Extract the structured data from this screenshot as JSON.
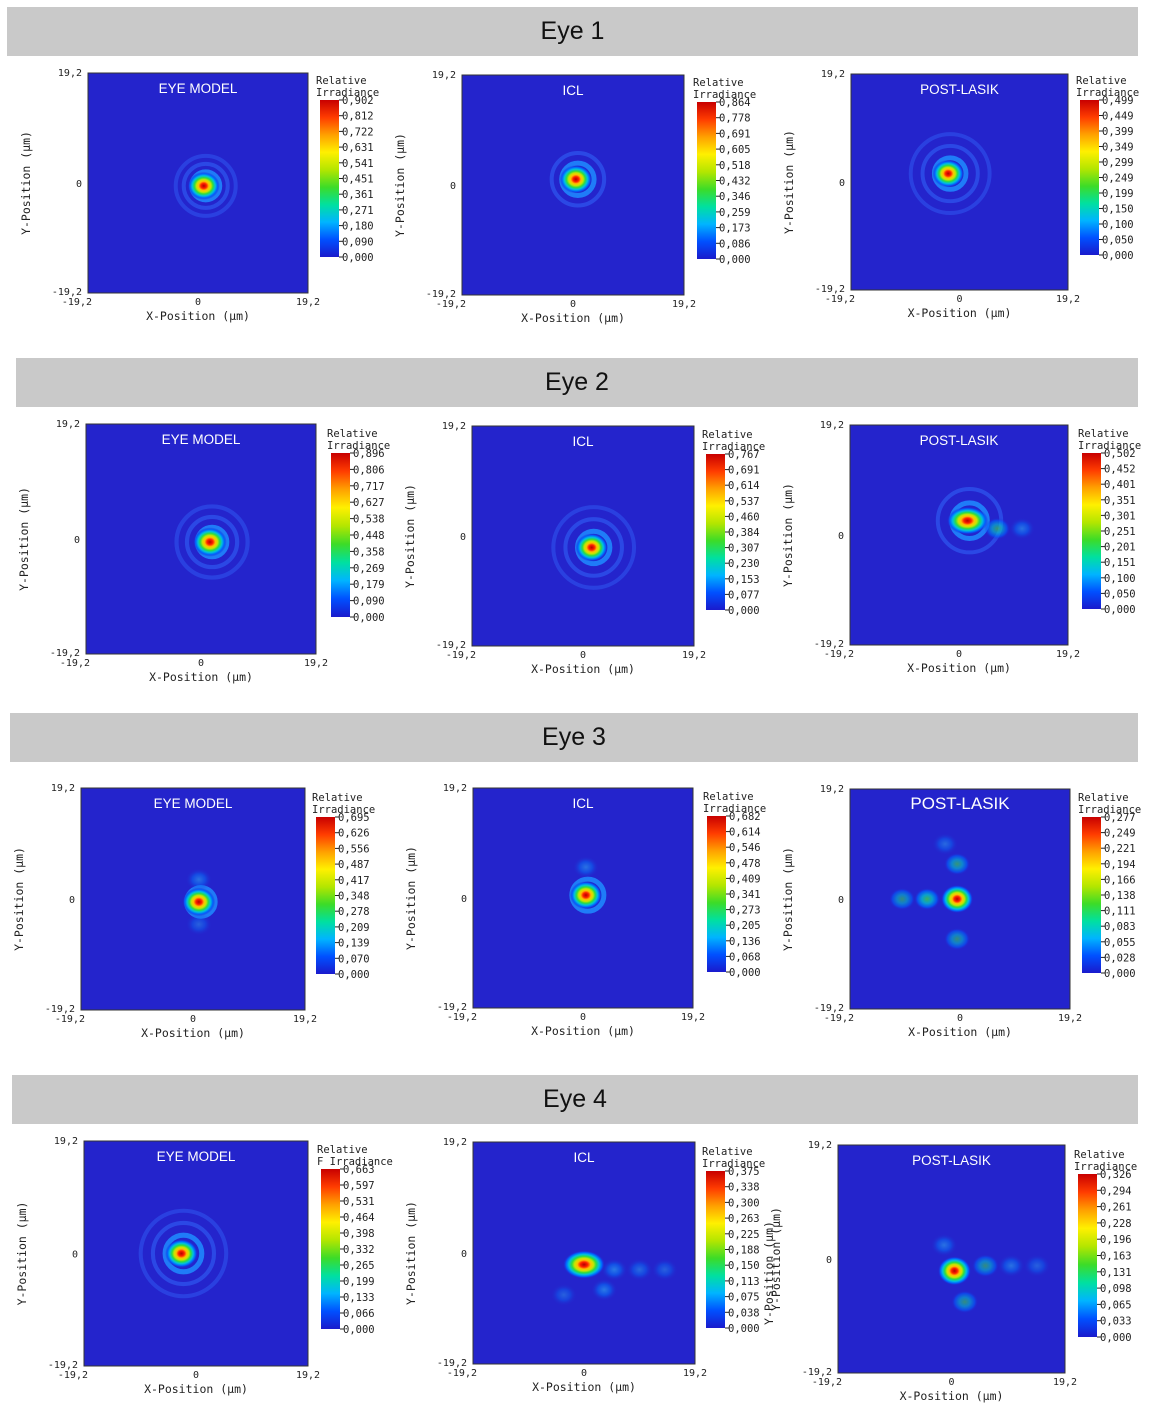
{
  "colorscale": [
    "#1a1acc",
    "#0050ff",
    "#00b4ff",
    "#00e0a0",
    "#3cdc28",
    "#b4e600",
    "#fff000",
    "#ffa000",
    "#ff3c00",
    "#c80000"
  ],
  "background_color": "#2424cc",
  "rows": [
    {
      "title": "Eye 1"
    },
    {
      "title": "Eye 2"
    },
    {
      "title": "Eye 3"
    },
    {
      "title": "Eye 4"
    }
  ],
  "chart_data": [
    {
      "type": "heatmap",
      "eye": "Eye 1",
      "label": "EYE MODEL",
      "xlabel": "X-Position (µm)",
      "ylabel": "Y-Position (µm)",
      "xlim": [
        -19.2,
        19.2
      ],
      "ylim": [
        -19.2,
        19.2
      ],
      "x_ticks": [
        "-19,2",
        "0",
        "19,2"
      ],
      "y_ticks": [
        "19,2",
        "0",
        "-19,2"
      ],
      "colorbar_title": [
        "Relative",
        "Irradiance"
      ],
      "colorbar_ticks": [
        "0,902",
        "0,812",
        "0,722",
        "0,631",
        "0,541",
        "0,451",
        "0,361",
        "0,271",
        "0,180",
        "0,090",
        "0,000"
      ],
      "peak_position": [
        1,
        -0.5
      ],
      "peak_value": 0.902
    },
    {
      "type": "heatmap",
      "eye": "Eye 1",
      "label": "ICL",
      "xlabel": "X-Position (µm)",
      "ylabel": "Y-Position (µm)",
      "xlim": [
        -19.2,
        19.2
      ],
      "ylim": [
        -19.2,
        19.2
      ],
      "x_ticks": [
        "-19,2",
        "0",
        "19,2"
      ],
      "y_ticks": [
        "19,2",
        "0",
        "-19,2"
      ],
      "colorbar_title": [
        "Relative",
        "Irradiance"
      ],
      "colorbar_ticks": [
        "0,864",
        "0,778",
        "0,691",
        "0,605",
        "0,518",
        "0,432",
        "0,346",
        "0,259",
        "0,173",
        "0,086",
        "0,000"
      ],
      "peak_position": [
        0.5,
        1
      ],
      "peak_value": 0.864
    },
    {
      "type": "heatmap",
      "eye": "Eye 1",
      "label": "POST-LASIK",
      "xlabel": "X-Position (µm)",
      "ylabel": "Y-Position (µm)",
      "xlim": [
        -19.2,
        19.2
      ],
      "ylim": [
        -19.2,
        19.2
      ],
      "x_ticks": [
        "-19,2",
        "0",
        "19,2"
      ],
      "y_ticks": [
        "19,2",
        "0",
        "-19,2"
      ],
      "colorbar_title": [
        "Relative",
        "Irradiance"
      ],
      "colorbar_ticks": [
        "0,499",
        "0,449",
        "0,399",
        "0,349",
        "0,299",
        "0,249",
        "0,199",
        "0,150",
        "0,100",
        "0,050",
        "0,000"
      ],
      "peak_position": [
        -2,
        1.5
      ],
      "peak_value": 0.499
    },
    {
      "type": "heatmap",
      "eye": "Eye 2",
      "label": "EYE MODEL",
      "xlabel": "X-Position (µm)",
      "ylabel": "Y-Position (µm)",
      "xlim": [
        -19.2,
        19.2
      ],
      "ylim": [
        -19.2,
        19.2
      ],
      "x_ticks": [
        "-19,2",
        "0",
        "19,2"
      ],
      "y_ticks": [
        "19,2",
        "0",
        "-19,2"
      ],
      "colorbar_title": [
        "Relative",
        "Irradiance"
      ],
      "colorbar_ticks": [
        "0,896",
        "0,806",
        "0,717",
        "0,627",
        "0,538",
        "0,448",
        "0,358",
        "0,269",
        "0,179",
        "0,090",
        "0,000"
      ],
      "peak_position": [
        1.5,
        -0.5
      ],
      "peak_value": 0.896
    },
    {
      "type": "heatmap",
      "eye": "Eye 2",
      "label": "ICL",
      "xlabel": "X-Position (µm)",
      "ylabel": "Y-Position (µm)",
      "xlim": [
        -19.2,
        19.2
      ],
      "ylim": [
        -19.2,
        19.2
      ],
      "x_ticks": [
        "-19,2",
        "0",
        "19,2"
      ],
      "y_ticks": [
        "19,2",
        "0",
        "-19,2"
      ],
      "colorbar_title": [
        "Relative",
        "Irradiance"
      ],
      "colorbar_ticks": [
        "0,767",
        "0,691",
        "0,614",
        "0,537",
        "0,460",
        "0,384",
        "0,307",
        "0,230",
        "0,153",
        "0,077",
        "0,000"
      ],
      "peak_position": [
        1.5,
        -2
      ],
      "peak_value": 0.767
    },
    {
      "type": "heatmap",
      "eye": "Eye 2",
      "label": "POST-LASIK",
      "xlabel": "X-Position (µm)",
      "ylabel": "Y-Position (µm)",
      "xlim": [
        -19.2,
        19.2
      ],
      "ylim": [
        -19.2,
        19.2
      ],
      "x_ticks": [
        "-19,2",
        "0",
        "19,2"
      ],
      "y_ticks": [
        "19,2",
        "0",
        "-19,2"
      ],
      "colorbar_title": [
        "Relative",
        "Irradiance"
      ],
      "colorbar_ticks": [
        "0,502",
        "0,452",
        "0,401",
        "0,351",
        "0,301",
        "0,251",
        "0,201",
        "0,151",
        "0,100",
        "0,050",
        "0,000"
      ],
      "peak_position": [
        1.5,
        2.5
      ],
      "peak_value": 0.502
    },
    {
      "type": "heatmap",
      "eye": "Eye 3",
      "label": "EYE MODEL",
      "xlabel": "X-Position (µm)",
      "ylabel": "Y-Position (µm)",
      "xlim": [
        -19.2,
        19.2
      ],
      "ylim": [
        -19.2,
        19.2
      ],
      "x_ticks": [
        "-19,2",
        "0",
        "19,2"
      ],
      "y_ticks": [
        "19,2",
        "0",
        "-19,2"
      ],
      "colorbar_title": [
        "Relative",
        "Irradiance"
      ],
      "colorbar_ticks": [
        "0,695",
        "0,626",
        "0,556",
        "0,487",
        "0,417",
        "0,348",
        "0,278",
        "0,209",
        "0,139",
        "0,070",
        "0,000"
      ],
      "peak_position": [
        1,
        -0.5
      ],
      "peak_value": 0.695
    },
    {
      "type": "heatmap",
      "eye": "Eye 3",
      "label": "ICL",
      "xlabel": "X-Position (µm)",
      "ylabel": "Y-Position (µm)",
      "xlim": [
        -19.2,
        19.2
      ],
      "ylim": [
        -19.2,
        19.2
      ],
      "x_ticks": [
        "-19,2",
        "0",
        "19,2"
      ],
      "y_ticks": [
        "19,2",
        "0",
        "-19,2"
      ],
      "colorbar_title": [
        "Relative",
        "Irradiance"
      ],
      "colorbar_ticks": [
        "0,682",
        "0,614",
        "0,546",
        "0,478",
        "0,409",
        "0,341",
        "0,273",
        "0,205",
        "0,136",
        "0,068",
        "0,000"
      ],
      "peak_position": [
        0.5,
        0.5
      ],
      "peak_value": 0.682
    },
    {
      "type": "heatmap",
      "eye": "Eye 3",
      "label": "POST-LASIK",
      "xlabel": "X-Position (µm)",
      "ylabel": "Y-Position (µm)",
      "xlim": [
        -19.2,
        19.2
      ],
      "ylim": [
        -19.2,
        19.2
      ],
      "x_ticks": [
        "-19,2",
        "0",
        "19,2"
      ],
      "y_ticks": [
        "19,2",
        "0",
        "-19,2"
      ],
      "colorbar_title": [
        "Relative",
        "Irradiance"
      ],
      "colorbar_ticks": [
        "0,277",
        "0,249",
        "0,221",
        "0,194",
        "0,166",
        "0,138",
        "0,111",
        "0,083",
        "0,055",
        "0,028",
        "0,000"
      ],
      "peak_position": [
        -0.5,
        0
      ],
      "peak_value": 0.277
    },
    {
      "type": "heatmap",
      "eye": "Eye 4",
      "label": "EYE MODEL",
      "xlabel": "X-Position (µm)",
      "ylabel": "Y-Position (µm)",
      "xlim": [
        -19.2,
        19.2
      ],
      "ylim": [
        -19.2,
        19.2
      ],
      "x_ticks": [
        "-19,2",
        "0",
        "19,2"
      ],
      "y_ticks": [
        "19,2",
        "0",
        "-19,2"
      ],
      "colorbar_title": [
        "Relative",
        "F Irradiance"
      ],
      "colorbar_ticks": [
        "0,663",
        "0,597",
        "0,531",
        "0,464",
        "0,398",
        "0,332",
        "0,265",
        "0,199",
        "0,133",
        "0,066",
        "0,000"
      ],
      "peak_position": [
        -2.5,
        0
      ],
      "peak_value": 0.663
    },
    {
      "type": "heatmap",
      "eye": "Eye 4",
      "label": "ICL",
      "xlabel": "X-Position (µm)",
      "ylabel": "Y-Position (µm)",
      "xlim": [
        -19.2,
        19.2
      ],
      "ylim": [
        -19.2,
        19.2
      ],
      "x_ticks": [
        "-19,2",
        "0",
        "19,2"
      ],
      "y_ticks": [
        "19,2",
        "0",
        "-19,2"
      ],
      "colorbar_title": [
        "Relative",
        "Irradiance"
      ],
      "colorbar_ticks": [
        "0,375",
        "0,338",
        "0,300",
        "0,263",
        "0,225",
        "0,188",
        "0,150",
        "0,113",
        "0,075",
        "0,038",
        "0,000"
      ],
      "peak_position": [
        0,
        -2
      ],
      "peak_value": 0.375,
      "extra_label": "Y-Position (µm)"
    },
    {
      "type": "heatmap",
      "eye": "Eye 4",
      "label": "POST-LASIK",
      "xlabel": "X-Position (µm)",
      "ylabel": "Y-Position (µm)",
      "xlim": [
        -19.2,
        19.2
      ],
      "ylim": [
        -19.2,
        19.2
      ],
      "x_ticks": [
        "-19,2",
        "0",
        "19,2"
      ],
      "y_ticks": [
        "19,2",
        "0",
        "-19,2"
      ],
      "colorbar_title": [
        "Relative",
        "Irradiance"
      ],
      "colorbar_ticks": [
        "0,326",
        "0,294",
        "0,261",
        "0,228",
        "0,196",
        "0,163",
        "0,131",
        "0,098",
        "0,065",
        "0,033",
        "0,000"
      ],
      "peak_position": [
        0.5,
        -2
      ],
      "peak_value": 0.326
    }
  ]
}
